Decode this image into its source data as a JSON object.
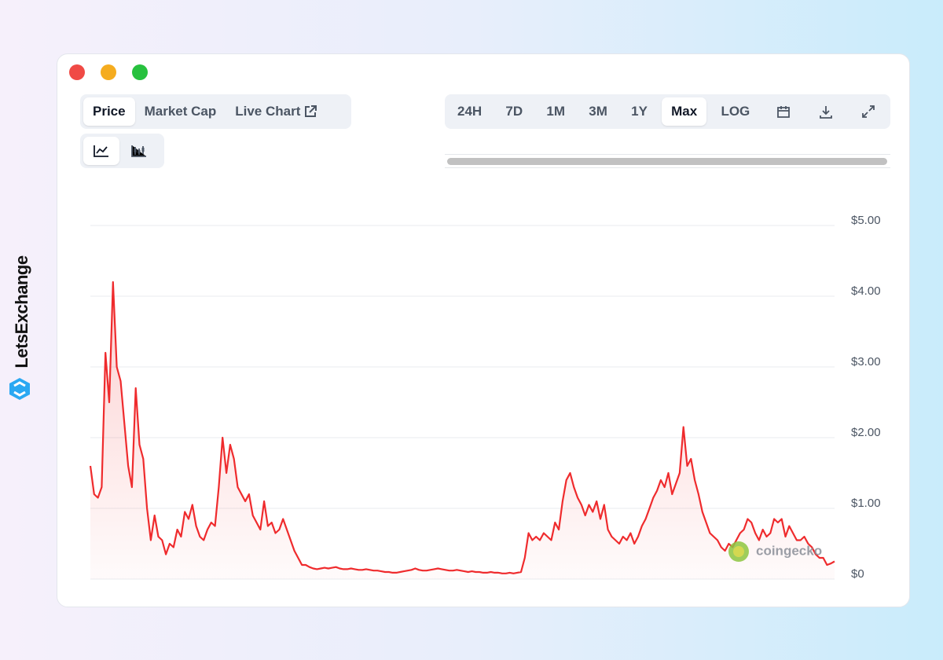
{
  "brand": "LetsExchange",
  "tabs": {
    "price": "Price",
    "market_cap": "Market Cap",
    "live_chart": "Live Chart"
  },
  "ranges": [
    "24H",
    "7D",
    "1M",
    "3M",
    "1Y",
    "Max",
    "LOG"
  ],
  "watermark": "coingecko",
  "chart_data": {
    "type": "area",
    "color": "#ef2b2d",
    "ylim": [
      0,
      5
    ],
    "yticks": [
      {
        "value": 0,
        "label": "$0"
      },
      {
        "value": 1,
        "label": "$1.00"
      },
      {
        "value": 2,
        "label": "$2.00"
      },
      {
        "value": 3,
        "label": "$3.00"
      },
      {
        "value": 4,
        "label": "$4.00"
      },
      {
        "value": 5,
        "label": "$5.00"
      }
    ],
    "grid": true,
    "values": [
      1.6,
      1.2,
      1.15,
      1.3,
      3.2,
      2.5,
      4.2,
      3.0,
      2.8,
      2.2,
      1.6,
      1.3,
      2.7,
      1.9,
      1.7,
      1.0,
      0.55,
      0.9,
      0.6,
      0.55,
      0.35,
      0.5,
      0.45,
      0.7,
      0.6,
      0.95,
      0.85,
      1.05,
      0.75,
      0.6,
      0.55,
      0.7,
      0.8,
      0.75,
      1.3,
      2.0,
      1.5,
      1.9,
      1.7,
      1.3,
      1.2,
      1.1,
      1.2,
      0.9,
      0.8,
      0.7,
      1.1,
      0.75,
      0.8,
      0.65,
      0.7,
      0.85,
      0.7,
      0.55,
      0.4,
      0.3,
      0.2,
      0.2,
      0.17,
      0.15,
      0.14,
      0.15,
      0.16,
      0.15,
      0.16,
      0.17,
      0.15,
      0.14,
      0.14,
      0.15,
      0.14,
      0.13,
      0.13,
      0.14,
      0.13,
      0.12,
      0.12,
      0.11,
      0.1,
      0.1,
      0.09,
      0.09,
      0.1,
      0.11,
      0.12,
      0.13,
      0.15,
      0.13,
      0.12,
      0.12,
      0.13,
      0.14,
      0.15,
      0.14,
      0.13,
      0.12,
      0.12,
      0.13,
      0.12,
      0.11,
      0.1,
      0.11,
      0.1,
      0.1,
      0.09,
      0.09,
      0.1,
      0.09,
      0.09,
      0.08,
      0.08,
      0.09,
      0.08,
      0.09,
      0.1,
      0.3,
      0.65,
      0.55,
      0.6,
      0.55,
      0.65,
      0.6,
      0.55,
      0.8,
      0.7,
      1.1,
      1.4,
      1.5,
      1.3,
      1.15,
      1.05,
      0.9,
      1.05,
      0.95,
      1.1,
      0.85,
      1.05,
      0.7,
      0.6,
      0.55,
      0.5,
      0.6,
      0.55,
      0.65,
      0.5,
      0.6,
      0.75,
      0.85,
      1.0,
      1.15,
      1.25,
      1.4,
      1.3,
      1.5,
      1.2,
      1.35,
      1.5,
      2.15,
      1.6,
      1.7,
      1.4,
      1.2,
      0.95,
      0.8,
      0.65,
      0.6,
      0.55,
      0.45,
      0.4,
      0.5,
      0.45,
      0.55,
      0.65,
      0.7,
      0.85,
      0.8,
      0.65,
      0.55,
      0.7,
      0.6,
      0.65,
      0.85,
      0.8,
      0.85,
      0.6,
      0.75,
      0.65,
      0.55,
      0.55,
      0.6,
      0.5,
      0.45,
      0.35,
      0.3,
      0.3,
      0.2,
      0.22,
      0.25
    ]
  }
}
